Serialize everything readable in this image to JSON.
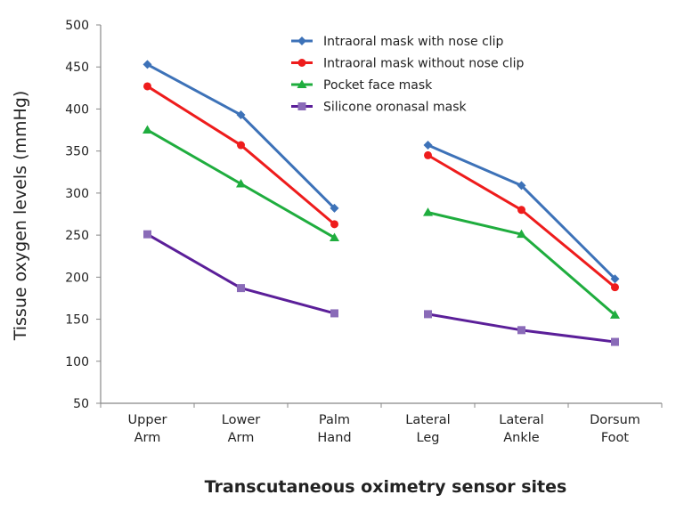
{
  "chart_data": {
    "type": "line",
    "title": "",
    "xlabel": "Transcutaneous oximetry sensor sites",
    "ylabel": "Tissue oxygen levels (mmHg)",
    "ylim": [
      50,
      500
    ],
    "yticks": [
      50,
      100,
      150,
      200,
      250,
      300,
      350,
      400,
      450,
      500
    ],
    "grid": false,
    "legend_position": "top-right",
    "categories": [
      [
        "Upper",
        "Arm"
      ],
      [
        "Lower",
        "Arm"
      ],
      [
        "Palm",
        "Hand"
      ],
      [
        "Lateral",
        "Leg"
      ],
      [
        "Lateral",
        "Ankle"
      ],
      [
        "Dorsum",
        "Foot"
      ]
    ],
    "line_segments": [
      [
        0,
        1,
        2
      ],
      [
        3,
        4,
        5
      ]
    ],
    "series": [
      {
        "name": "Intraoral mask with nose clip",
        "color": "#3d72b8",
        "marker": "diamond",
        "values": [
          453,
          393,
          282,
          357,
          309,
          198
        ]
      },
      {
        "name": "Intraoral mask without nose clip",
        "color": "#ee1c1c",
        "marker": "circle",
        "values": [
          427,
          357,
          263,
          345,
          280,
          188
        ]
      },
      {
        "name": "Pocket face mask",
        "color": "#1fad3e",
        "marker": "triangle",
        "values": [
          375,
          311,
          247,
          277,
          251,
          155
        ]
      },
      {
        "name": "Silicone oronasal mask",
        "color": "#5b1f99",
        "marker": "square",
        "markerColor": "#8a6bb8",
        "values": [
          251,
          187,
          157,
          156,
          137,
          123
        ]
      }
    ]
  }
}
